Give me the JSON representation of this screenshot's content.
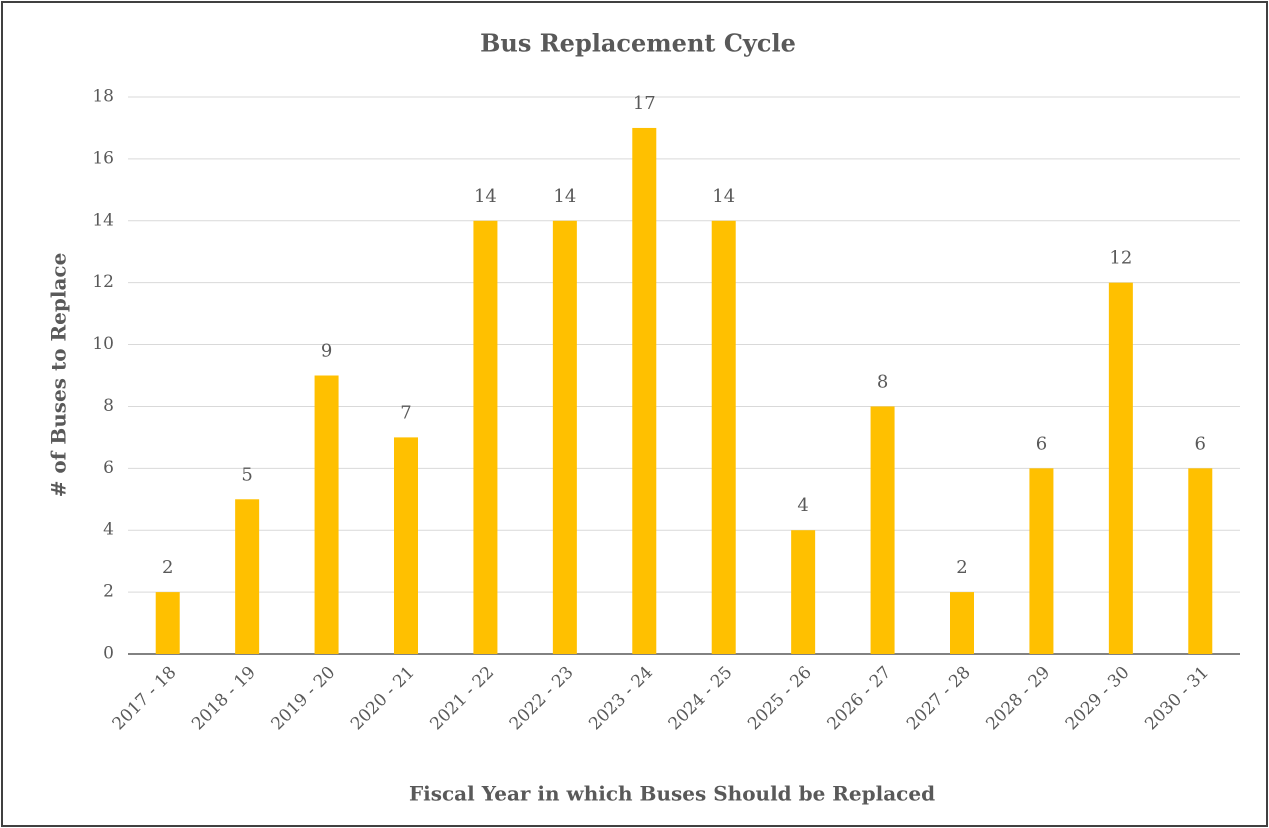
{
  "chart_data": {
    "type": "bar",
    "title": "Bus Replacement Cycle",
    "x_label": "Fiscal Year in which Buses Should be Replaced",
    "y_label": "# of Buses to Replace",
    "categories": [
      "2017 - 18",
      "2018 - 19",
      "2019 - 20",
      "2020 - 21",
      "2021 - 22",
      "2022 - 23",
      "2023 - 24",
      "2024 - 25",
      "2025 - 26",
      "2026 - 27",
      "2027 - 28",
      "2028 - 29",
      "2029 - 30",
      "2030 - 31"
    ],
    "values": [
      2,
      5,
      9,
      7,
      14,
      14,
      17,
      14,
      4,
      8,
      2,
      6,
      12,
      6
    ],
    "color": "#ffc000",
    "ylim": [
      0,
      18
    ],
    "yticks": [
      0,
      2,
      4,
      6,
      8,
      10,
      12,
      14,
      16,
      18
    ],
    "grid": true
  }
}
